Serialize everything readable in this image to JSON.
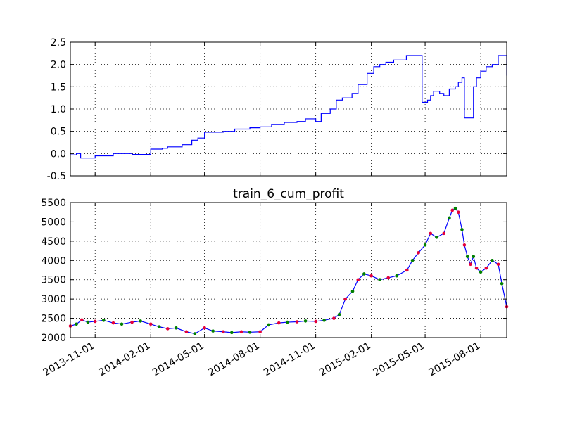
{
  "chart_data": [
    {
      "type": "line",
      "title": "",
      "xlabel": "",
      "ylabel": "",
      "x_type": "date",
      "xlim": [
        "2013-09-21",
        "2015-09-13"
      ],
      "ylim": [
        -0.5,
        2.5
      ],
      "yticks": [
        -0.5,
        0.0,
        0.5,
        1.0,
        1.5,
        2.0,
        2.5
      ],
      "ytick_labels": [
        "-0.5",
        "0.0",
        "0.5",
        "1.0",
        "1.5",
        "2.0",
        "2.5"
      ],
      "xticks": [
        "2013-11-01",
        "2014-02-01",
        "2014-05-01",
        "2014-08-01",
        "2014-11-01",
        "2015-02-01",
        "2015-05-01",
        "2015-08-01"
      ],
      "xtick_labels_shown": false,
      "grid": true,
      "line_color": "#0000ff",
      "step": true,
      "series": [
        {
          "x": [
            "2013-09-21",
            "2013-10-01",
            "2013-10-08",
            "2013-10-15",
            "2013-11-01",
            "2013-12-01",
            "2014-01-01",
            "2014-02-01",
            "2014-02-20",
            "2014-03-01",
            "2014-03-25",
            "2014-04-10",
            "2014-04-20",
            "2014-05-01",
            "2014-06-01",
            "2014-06-20",
            "2014-07-15",
            "2014-08-01",
            "2014-08-20",
            "2014-09-10",
            "2014-10-01",
            "2014-10-15",
            "2014-10-25",
            "2014-11-01",
            "2014-11-10",
            "2014-11-25",
            "2014-12-05",
            "2014-12-15",
            "2014-12-31",
            "2015-01-10",
            "2015-01-25",
            "2015-02-05",
            "2015-02-15",
            "2015-02-25",
            "2015-03-10",
            "2015-03-31",
            "2015-04-25",
            "2015-04-26",
            "2015-05-05",
            "2015-05-10",
            "2015-05-15",
            "2015-05-25",
            "2015-06-01",
            "2015-06-10",
            "2015-06-20",
            "2015-06-25",
            "2015-07-01",
            "2015-07-05",
            "2015-07-10",
            "2015-07-20",
            "2015-07-25",
            "2015-08-01",
            "2015-08-10",
            "2015-08-20",
            "2015-08-30",
            "2015-09-05",
            "2015-09-13"
          ],
          "y": [
            -0.03,
            0.0,
            -0.1,
            -0.1,
            -0.05,
            0.0,
            -0.02,
            0.1,
            0.12,
            0.15,
            0.2,
            0.3,
            0.35,
            0.48,
            0.5,
            0.55,
            0.58,
            0.6,
            0.65,
            0.7,
            0.72,
            0.78,
            0.78,
            0.72,
            0.9,
            1.0,
            1.2,
            1.25,
            1.35,
            1.55,
            1.8,
            1.95,
            2.0,
            2.05,
            2.1,
            2.2,
            2.2,
            1.15,
            1.2,
            1.3,
            1.4,
            1.35,
            1.3,
            1.45,
            1.5,
            1.6,
            1.7,
            0.8,
            0.8,
            1.5,
            1.7,
            1.85,
            1.95,
            2.0,
            2.2,
            2.2,
            1.75
          ]
        }
      ]
    },
    {
      "type": "line",
      "title": "train_6_cum_profit",
      "xlabel": "",
      "ylabel": "",
      "x_type": "date",
      "xlim": [
        "2013-09-21",
        "2015-09-13"
      ],
      "ylim": [
        2000,
        5500
      ],
      "yticks": [
        2000,
        2500,
        3000,
        3500,
        4000,
        4500,
        5000,
        5500
      ],
      "ytick_labels": [
        "2000",
        "2500",
        "3000",
        "3500",
        "4000",
        "4500",
        "5000",
        "5500"
      ],
      "xticks": [
        "2013-11-01",
        "2014-02-01",
        "2014-05-01",
        "2014-08-01",
        "2014-11-01",
        "2015-02-01",
        "2015-05-01",
        "2015-08-01"
      ],
      "xtick_labels": [
        "2013-11-01",
        "2014-02-01",
        "2014-05-01",
        "2014-08-01",
        "2014-11-01",
        "2015-02-01",
        "2015-05-01",
        "2015-08-01"
      ],
      "grid": true,
      "line_color": "#0000ff",
      "marker_colors": [
        "#e4003a",
        "#008000"
      ],
      "series": [
        {
          "x": [
            "2013-09-21",
            "2013-10-01",
            "2013-10-10",
            "2013-10-20",
            "2013-11-01",
            "2013-11-15",
            "2013-12-01",
            "2013-12-15",
            "2014-01-01",
            "2014-01-15",
            "2014-02-01",
            "2014-02-15",
            "2014-03-01",
            "2014-03-15",
            "2014-04-01",
            "2014-04-15",
            "2014-05-01",
            "2014-05-15",
            "2014-06-01",
            "2014-06-15",
            "2014-07-01",
            "2014-07-15",
            "2014-08-01",
            "2014-08-15",
            "2014-09-01",
            "2014-09-15",
            "2014-10-01",
            "2014-10-15",
            "2014-11-01",
            "2014-11-15",
            "2014-12-01",
            "2014-12-10",
            "2014-12-20",
            "2015-01-01",
            "2015-01-10",
            "2015-01-20",
            "2015-02-01",
            "2015-02-15",
            "2015-03-01",
            "2015-03-15",
            "2015-04-01",
            "2015-04-10",
            "2015-04-20",
            "2015-05-01",
            "2015-05-10",
            "2015-05-20",
            "2015-06-01",
            "2015-06-10",
            "2015-06-15",
            "2015-06-20",
            "2015-06-25",
            "2015-07-01",
            "2015-07-05",
            "2015-07-10",
            "2015-07-15",
            "2015-07-20",
            "2015-07-25",
            "2015-08-01",
            "2015-08-10",
            "2015-08-20",
            "2015-08-30",
            "2015-09-05",
            "2015-09-13"
          ],
          "y": [
            2300,
            2350,
            2460,
            2400,
            2420,
            2450,
            2380,
            2350,
            2400,
            2430,
            2350,
            2280,
            2230,
            2250,
            2150,
            2100,
            2250,
            2170,
            2150,
            2130,
            2150,
            2140,
            2150,
            2330,
            2380,
            2400,
            2410,
            2430,
            2420,
            2450,
            2500,
            2600,
            3000,
            3200,
            3500,
            3650,
            3600,
            3500,
            3550,
            3600,
            3750,
            4000,
            4200,
            4400,
            4700,
            4600,
            4700,
            5100,
            5300,
            5350,
            5250,
            4800,
            4400,
            4100,
            3900,
            4100,
            3800,
            3700,
            3800,
            4000,
            3900,
            3400,
            2800
          ]
        }
      ]
    }
  ]
}
